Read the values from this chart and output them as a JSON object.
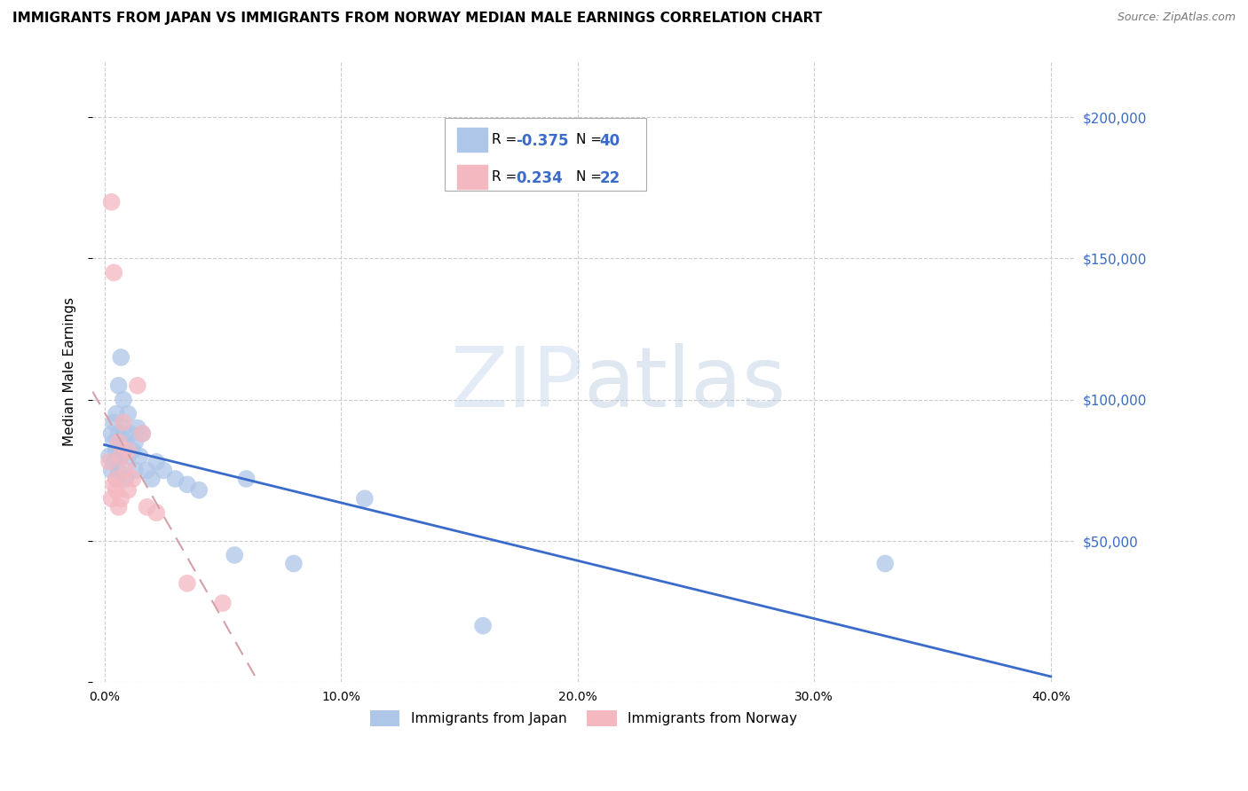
{
  "title": "IMMIGRANTS FROM JAPAN VS IMMIGRANTS FROM NORWAY MEDIAN MALE EARNINGS CORRELATION CHART",
  "source": "Source: ZipAtlas.com",
  "ylabel": "Median Male Earnings",
  "xlabel_ticks": [
    "0.0%",
    "10.0%",
    "20.0%",
    "30.0%",
    "40.0%"
  ],
  "xlabel_vals": [
    0.0,
    0.1,
    0.2,
    0.3,
    0.4
  ],
  "ylabel_vals": [
    0,
    50000,
    100000,
    150000,
    200000
  ],
  "ylabel_labels": [
    "",
    "$50,000",
    "$100,000",
    "$150,000",
    "$200,000"
  ],
  "xlim": [
    -0.005,
    0.41
  ],
  "ylim": [
    0,
    220000
  ],
  "japan_R": -0.375,
  "japan_N": 40,
  "norway_R": 0.234,
  "norway_N": 22,
  "japan_color": "#aec6e8",
  "norway_color": "#f4b8c1",
  "japan_line_color": "#3a6bc9",
  "norway_line_color": "#d4a0a8",
  "japan_points_x": [
    0.002,
    0.003,
    0.003,
    0.004,
    0.004,
    0.004,
    0.005,
    0.005,
    0.005,
    0.006,
    0.006,
    0.006,
    0.007,
    0.007,
    0.008,
    0.008,
    0.009,
    0.009,
    0.01,
    0.01,
    0.011,
    0.012,
    0.013,
    0.013,
    0.014,
    0.015,
    0.016,
    0.018,
    0.02,
    0.022,
    0.025,
    0.03,
    0.035,
    0.04,
    0.055,
    0.06,
    0.08,
    0.11,
    0.16,
    0.33
  ],
  "japan_points_y": [
    80000,
    88000,
    75000,
    92000,
    85000,
    78000,
    95000,
    82000,
    72000,
    105000,
    88000,
    75000,
    115000,
    80000,
    100000,
    90000,
    85000,
    72000,
    95000,
    80000,
    88000,
    82000,
    85000,
    75000,
    90000,
    80000,
    88000,
    75000,
    72000,
    78000,
    75000,
    72000,
    70000,
    68000,
    45000,
    72000,
    42000,
    65000,
    20000,
    42000
  ],
  "norway_points_x": [
    0.002,
    0.003,
    0.003,
    0.004,
    0.004,
    0.005,
    0.005,
    0.006,
    0.006,
    0.007,
    0.007,
    0.008,
    0.009,
    0.01,
    0.01,
    0.012,
    0.014,
    0.016,
    0.018,
    0.022,
    0.035,
    0.05
  ],
  "norway_points_y": [
    78000,
    170000,
    65000,
    145000,
    70000,
    72000,
    68000,
    85000,
    62000,
    80000,
    65000,
    92000,
    75000,
    82000,
    68000,
    72000,
    105000,
    88000,
    62000,
    60000,
    35000,
    28000
  ],
  "watermark_zip": "ZIP",
  "watermark_atlas": "atlas",
  "legend_japan_label": "R = -0.375   N = 40",
  "legend_norway_label": "R =  0.234   N = 22"
}
